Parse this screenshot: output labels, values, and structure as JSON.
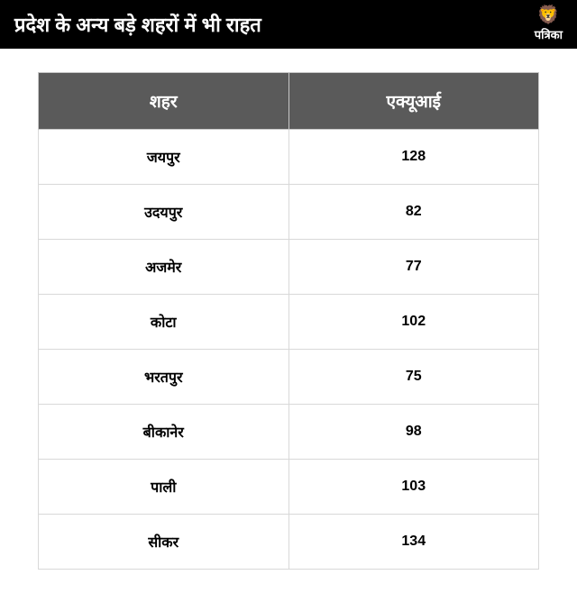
{
  "header": {
    "title": "प्रदेश के अन्य बड़े शहरों में भी राहत",
    "logo_text": "पत्रिका"
  },
  "table": {
    "type": "table",
    "columns": [
      "शहर",
      "एक्यूआई"
    ],
    "rows": [
      [
        "जयपुर",
        "128"
      ],
      [
        "उदयपुर",
        "82"
      ],
      [
        "अजमेर",
        "77"
      ],
      [
        "कोटा",
        "102"
      ],
      [
        "भरतपुर",
        "75"
      ],
      [
        "बीकानेर",
        "98"
      ],
      [
        "पाली",
        "103"
      ],
      [
        "सीकर",
        "134"
      ]
    ],
    "header_bg_color": "#5a5a5a",
    "header_text_color": "#ffffff",
    "header_fontsize": 19,
    "cell_bg_color": "#ffffff",
    "cell_text_color": "#000000",
    "cell_fontsize": 16,
    "border_color": "#d8d8d8",
    "outer_border_color": "#c8c8c8",
    "column_widths": [
      "50%",
      "50%"
    ],
    "text_align": "center"
  },
  "styling": {
    "page_bg": "#ffffff",
    "header_bg": "#000000",
    "header_text_color": "#ffffff",
    "header_fontsize": 22,
    "logo_icon_color": "#d4a836",
    "logo_text_fontsize": 13
  }
}
